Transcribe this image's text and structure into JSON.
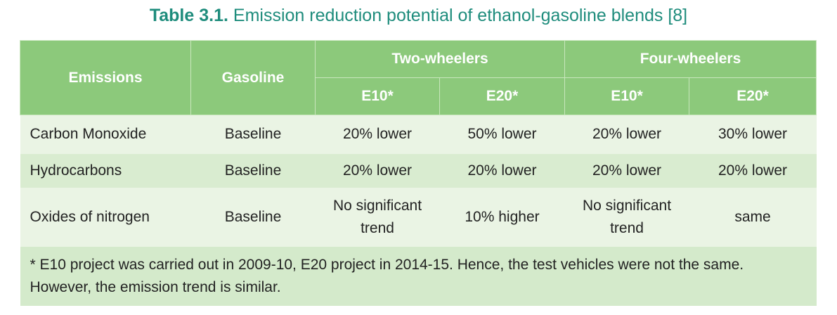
{
  "title": {
    "label": "Table 3.1.",
    "text": "Emission reduction potential of ethanol-gasoline blends [8]"
  },
  "table": {
    "header": [
      "Emissions",
      "Gasoline",
      "Two-wheelers",
      "Four-wheelers"
    ],
    "subheader": [
      "E10*",
      "E20*",
      "E10*",
      "E20*"
    ],
    "rows": [
      [
        "Carbon Monoxide",
        "Baseline",
        "20% lower",
        "50% lower",
        "20% lower",
        "30% lower"
      ],
      [
        "Hydrocarbons",
        "Baseline",
        "20% lower",
        "20% lower",
        "20% lower",
        "20% lower"
      ],
      [
        "Oxides of nitrogen",
        "Baseline",
        "No significant trend",
        "10% higher",
        "No significant trend",
        "same"
      ]
    ],
    "footnote": "* E10 project was carried out in 2009-10, E20 project in 2014-15. Hence, the test vehicles were not the same. However, the emission trend is similar."
  }
}
